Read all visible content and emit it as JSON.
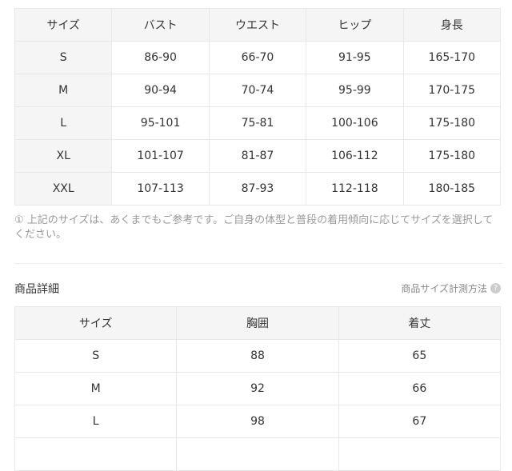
{
  "size_chart": {
    "headers": [
      "サイズ",
      "バスト",
      "ウエスト",
      "ヒップ",
      "身長"
    ],
    "rows": [
      [
        "S",
        "86-90",
        "66-70",
        "91-95",
        "165-170"
      ],
      [
        "M",
        "90-94",
        "70-74",
        "95-99",
        "170-175"
      ],
      [
        "L",
        "95-101",
        "75-81",
        "100-106",
        "175-180"
      ],
      [
        "XL",
        "101-107",
        "81-87",
        "106-112",
        "175-180"
      ],
      [
        "XXL",
        "107-113",
        "87-93",
        "112-118",
        "180-185"
      ]
    ]
  },
  "note": {
    "icon": "①",
    "text": "上記のサイズは、あくまでもご参考です。ご自身の体型と普段の着用傾向に応じてサイズを選択してください。"
  },
  "details": {
    "title": "商品詳細",
    "measure_link": "商品サイズ計測方法",
    "help_icon": "?",
    "headers": [
      "サイズ",
      "胸囲",
      "着丈"
    ],
    "rows": [
      [
        "S",
        "88",
        "65"
      ],
      [
        "M",
        "92",
        "66"
      ],
      [
        "L",
        "98",
        "67"
      ],
      [
        "",
        "",
        ""
      ]
    ]
  }
}
